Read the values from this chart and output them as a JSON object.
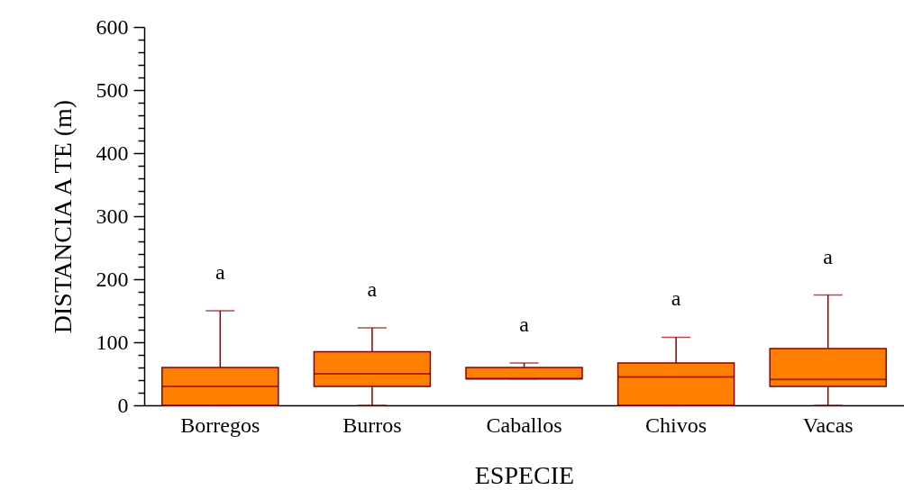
{
  "chart_data": {
    "type": "box",
    "xlabel": "ESPECIE",
    "ylabel": "DISTANCIA A TE  (m)",
    "color": "#ff8000",
    "categories": [
      "Borregos",
      "Burros",
      "Caballos",
      "Chivos",
      "Vacas"
    ],
    "boxes": [
      {
        "low": 0,
        "q1": 0,
        "median": 30,
        "q3": 60,
        "high": 150
      },
      {
        "low": 0,
        "q1": 30,
        "median": 50,
        "q3": 85,
        "high": 123
      },
      {
        "low": 42,
        "q1": 42,
        "median": 42,
        "q3": 60,
        "high": 67
      },
      {
        "low": 0,
        "q1": 0,
        "median": 45,
        "q3": 67,
        "high": 108
      },
      {
        "low": 0,
        "q1": 30,
        "median": 41,
        "q3": 90,
        "high": 175
      }
    ],
    "ylim": [
      0,
      600
    ],
    "yticks": [
      0,
      {
        "value": 20,
        "label": null
      },
      {
        "value": 40,
        "label": null
      },
      {
        "value": 60,
        "label": null
      },
      {
        "value": 80,
        "label": null
      },
      100,
      {
        "value": 120,
        "label": null
      },
      {
        "value": 140,
        "label": null
      },
      {
        "value": 160,
        "label": null
      },
      {
        "value": 180,
        "label": null
      },
      200,
      {
        "value": 220,
        "label": null
      },
      {
        "value": 240,
        "label": null
      },
      {
        "value": 260,
        "label": null
      },
      {
        "value": 280,
        "label": null
      },
      300,
      {
        "value": 320,
        "label": null
      },
      {
        "value": 340,
        "label": null
      },
      {
        "value": 360,
        "label": null
      },
      {
        "value": 380,
        "label": null
      },
      400,
      {
        "value": 420,
        "label": null
      },
      {
        "value": 440,
        "label": null
      },
      {
        "value": 460,
        "label": null
      },
      {
        "value": 480,
        "label": null
      },
      500,
      {
        "value": 520,
        "label": null
      },
      {
        "value": 540,
        "label": null
      },
      {
        "value": 560,
        "label": null
      },
      {
        "value": 580,
        "label": null
      },
      600
    ],
    "annotations": [
      "a",
      "a",
      "a",
      "a",
      "a"
    ]
  }
}
